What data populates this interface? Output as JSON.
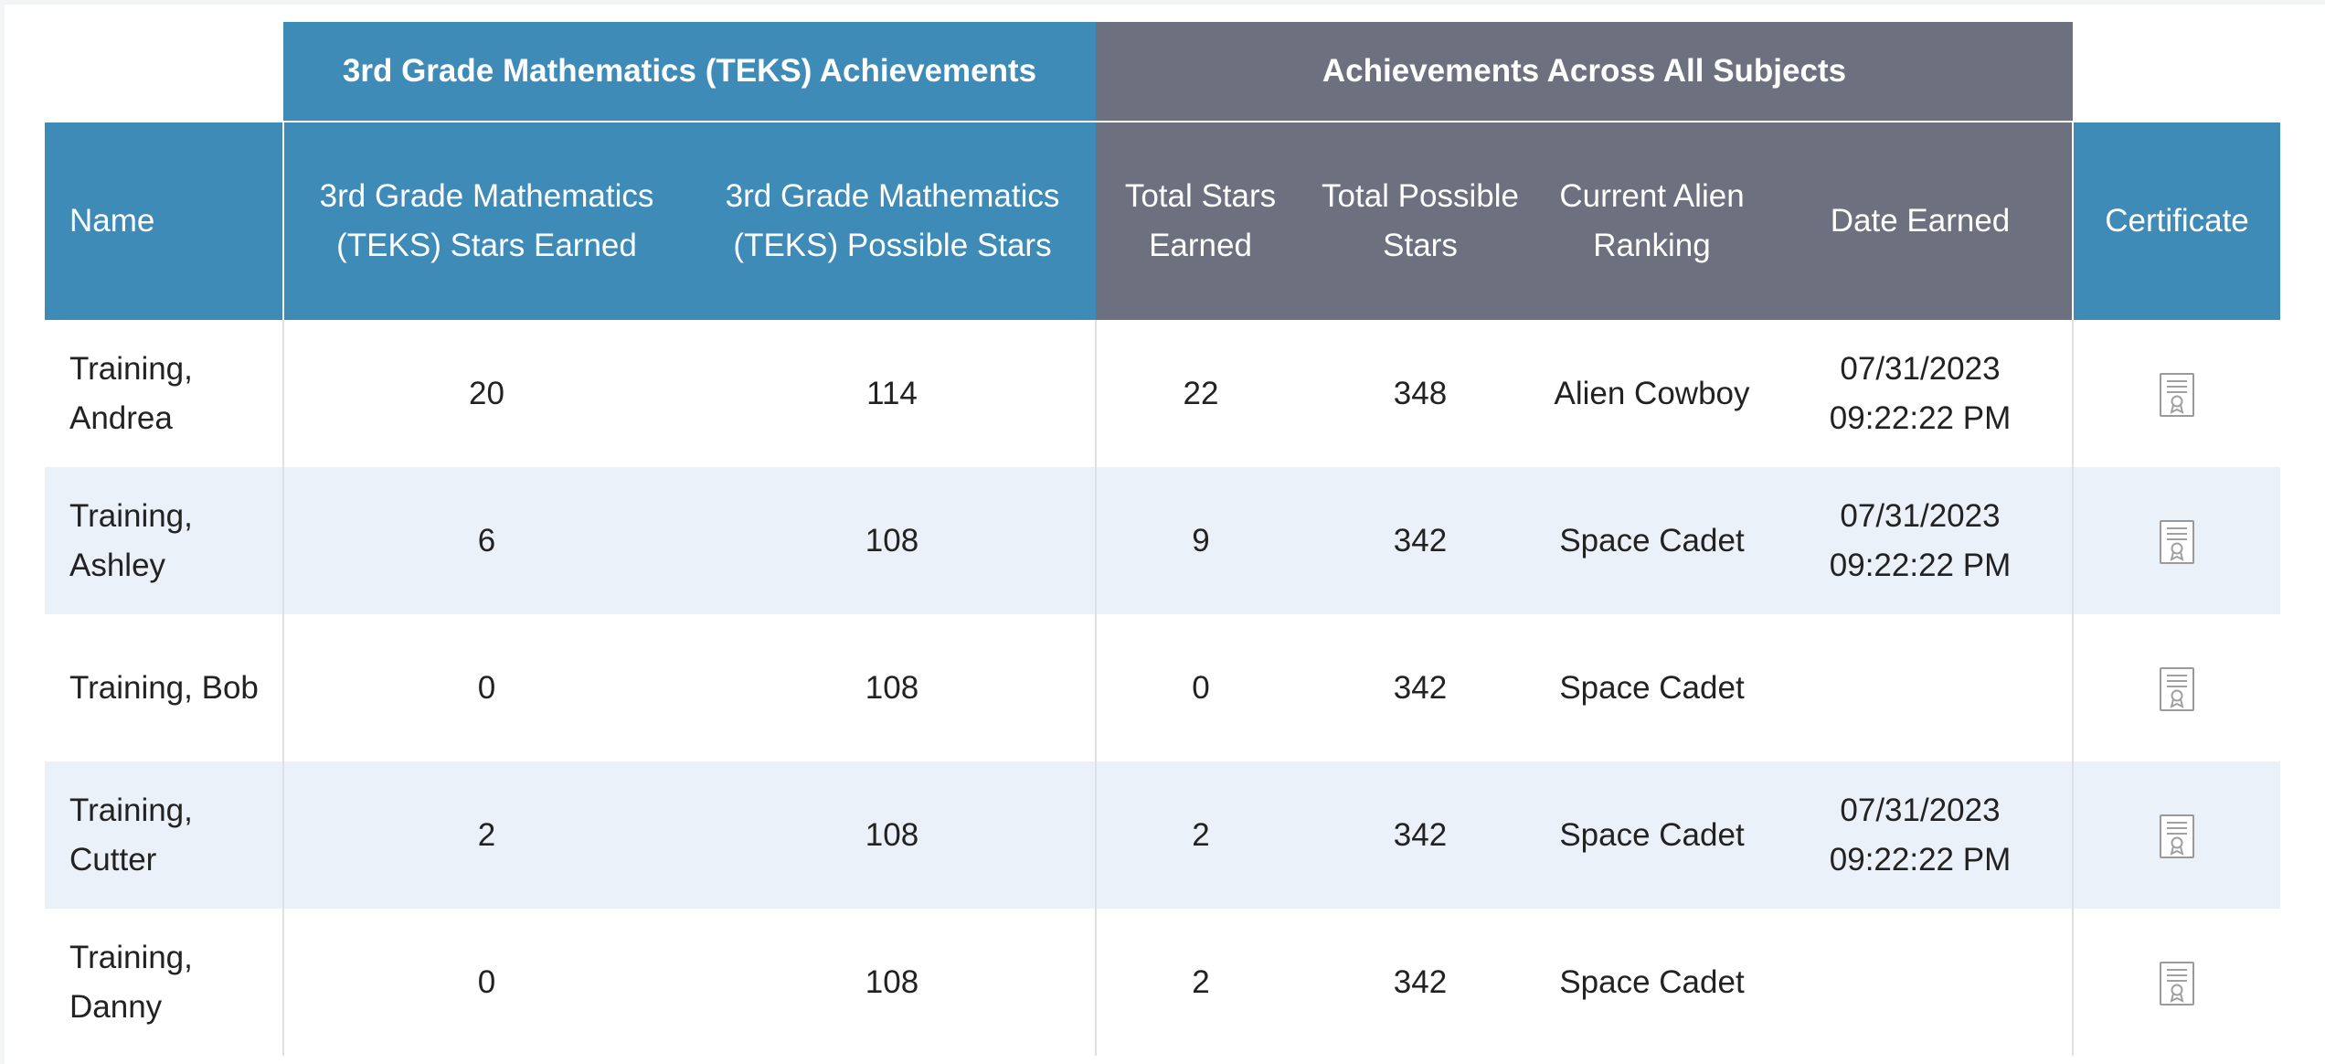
{
  "table": {
    "group_headers": {
      "teks": "3rd Grade Mathematics (TEKS) Achievements",
      "all_subjects": "Achievements Across All Subjects"
    },
    "columns": {
      "name": "Name",
      "teks_stars_earned": "3rd Grade Mathematics (TEKS) Stars Earned",
      "teks_possible_stars": "3rd Grade Mathematics (TEKS) Possible Stars",
      "total_stars_earned": "Total Stars Earned",
      "total_possible_stars": "Total Possible Stars",
      "current_alien_ranking": "Current Alien Ranking",
      "date_earned": "Date Earned",
      "certificate": "Certificate"
    },
    "rows": [
      {
        "name": "Training, Andrea",
        "teks_earned": "20",
        "teks_possible": "114",
        "total_earned": "22",
        "total_possible": "348",
        "ranking": "Alien Cowboy",
        "date_earned": "07/31/2023 09:22:22 PM",
        "certificate_icon": "certificate-icon"
      },
      {
        "name": "Training, Ashley",
        "teks_earned": "6",
        "teks_possible": "108",
        "total_earned": "9",
        "total_possible": "342",
        "ranking": "Space Cadet",
        "date_earned": "07/31/2023 09:22:22 PM",
        "certificate_icon": "certificate-icon"
      },
      {
        "name": "Training, Bob",
        "teks_earned": "0",
        "teks_possible": "108",
        "total_earned": "0",
        "total_possible": "342",
        "ranking": "Space Cadet",
        "date_earned": "",
        "certificate_icon": "certificate-icon"
      },
      {
        "name": "Training, Cutter",
        "teks_earned": "2",
        "teks_possible": "108",
        "total_earned": "2",
        "total_possible": "342",
        "ranking": "Space Cadet",
        "date_earned": "07/31/2023 09:22:22 PM",
        "certificate_icon": "certificate-icon"
      },
      {
        "name": "Training, Danny",
        "teks_earned": "0",
        "teks_possible": "108",
        "total_earned": "2",
        "total_possible": "342",
        "ranking": "Space Cadet",
        "date_earned": "",
        "certificate_icon": "certificate-icon"
      }
    ]
  },
  "colors": {
    "teks_header": "#3e8bb8",
    "all_subjects_header": "#6d717f",
    "row_stripe": "#ebf1f8"
  }
}
